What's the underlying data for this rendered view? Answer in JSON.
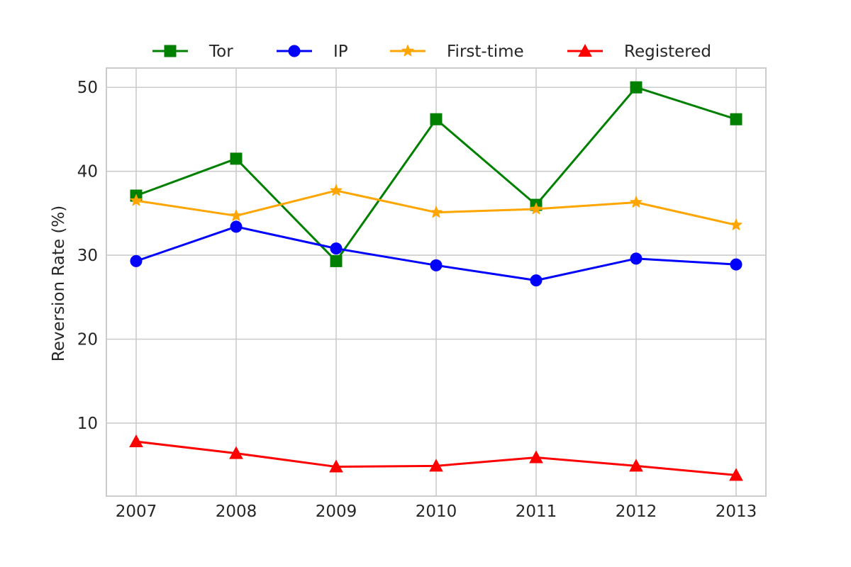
{
  "chart_data": {
    "type": "line",
    "title": "",
    "xlabel": "",
    "ylabel": "Reversion Rate (%)",
    "categories": [
      "2007",
      "2008",
      "2009",
      "2010",
      "2011",
      "2012",
      "2013"
    ],
    "ylim": [
      1.3,
      52.3
    ],
    "yticks": [
      10,
      20,
      30,
      40,
      50
    ],
    "grid": true,
    "legend_position": "top-center",
    "series": [
      {
        "name": "Tor",
        "color": "#008000",
        "marker": "square",
        "values": [
          37.1,
          41.5,
          29.3,
          46.2,
          36.0,
          50.0,
          46.2
        ]
      },
      {
        "name": "IP",
        "color": "#0000ff",
        "marker": "circle",
        "values": [
          29.3,
          33.4,
          30.8,
          28.8,
          27.0,
          29.6,
          28.9
        ]
      },
      {
        "name": "First-time",
        "color": "#ffa500",
        "marker": "star",
        "values": [
          36.5,
          34.7,
          37.7,
          35.1,
          35.5,
          36.3,
          33.6
        ]
      },
      {
        "name": "Registered",
        "color": "#ff0000",
        "marker": "triangle",
        "values": [
          7.8,
          6.4,
          4.8,
          4.9,
          5.9,
          4.9,
          3.8
        ]
      }
    ]
  }
}
